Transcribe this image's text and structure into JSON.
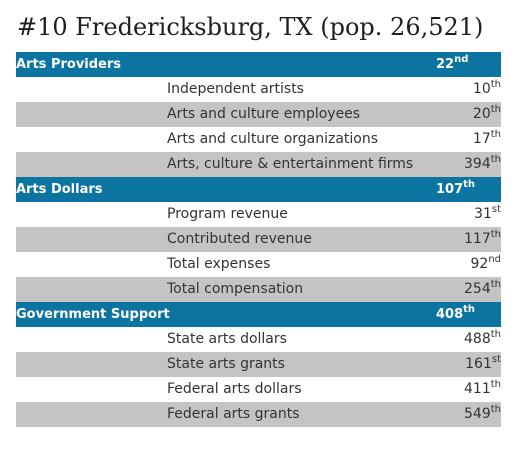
{
  "title": "#10 Fredericksburg, TX (pop. 26,521)",
  "sections": [
    {
      "label": "Arts Providers",
      "rank": "22",
      "suffix": "nd",
      "items": [
        {
          "label": "Independent artists",
          "rank": "10",
          "suffix": "th"
        },
        {
          "label": "Arts and culture employees",
          "rank": "20",
          "suffix": "th"
        },
        {
          "label": "Arts and culture organizations",
          "rank": "17",
          "suffix": "th"
        },
        {
          "label": "Arts, culture & entertainment firms",
          "rank": "394",
          "suffix": "th"
        }
      ]
    },
    {
      "label": "Arts Dollars",
      "rank": "107",
      "suffix": "th",
      "items": [
        {
          "label": "Program revenue",
          "rank": "31",
          "suffix": "st"
        },
        {
          "label": "Contributed revenue",
          "rank": "117",
          "suffix": "th"
        },
        {
          "label": "Total expenses",
          "rank": "92",
          "suffix": "nd"
        },
        {
          "label": "Total compensation",
          "rank": "254",
          "suffix": "th"
        }
      ]
    },
    {
      "label": "Government Support",
      "rank": "408",
      "suffix": "th",
      "items": [
        {
          "label": "State arts dollars",
          "rank": "488",
          "suffix": "th"
        },
        {
          "label": "State arts grants",
          "rank": "161",
          "suffix": "st"
        },
        {
          "label": "Federal arts dollars",
          "rank": "411",
          "suffix": "th"
        },
        {
          "label": "Federal arts grants",
          "rank": "549",
          "suffix": "th"
        }
      ]
    }
  ],
  "colors": {
    "header_bg": "#0b74a0",
    "header_text": "#ffffff",
    "row_alt_bg": "#c4c4c4",
    "row_bg": "#ffffff"
  }
}
